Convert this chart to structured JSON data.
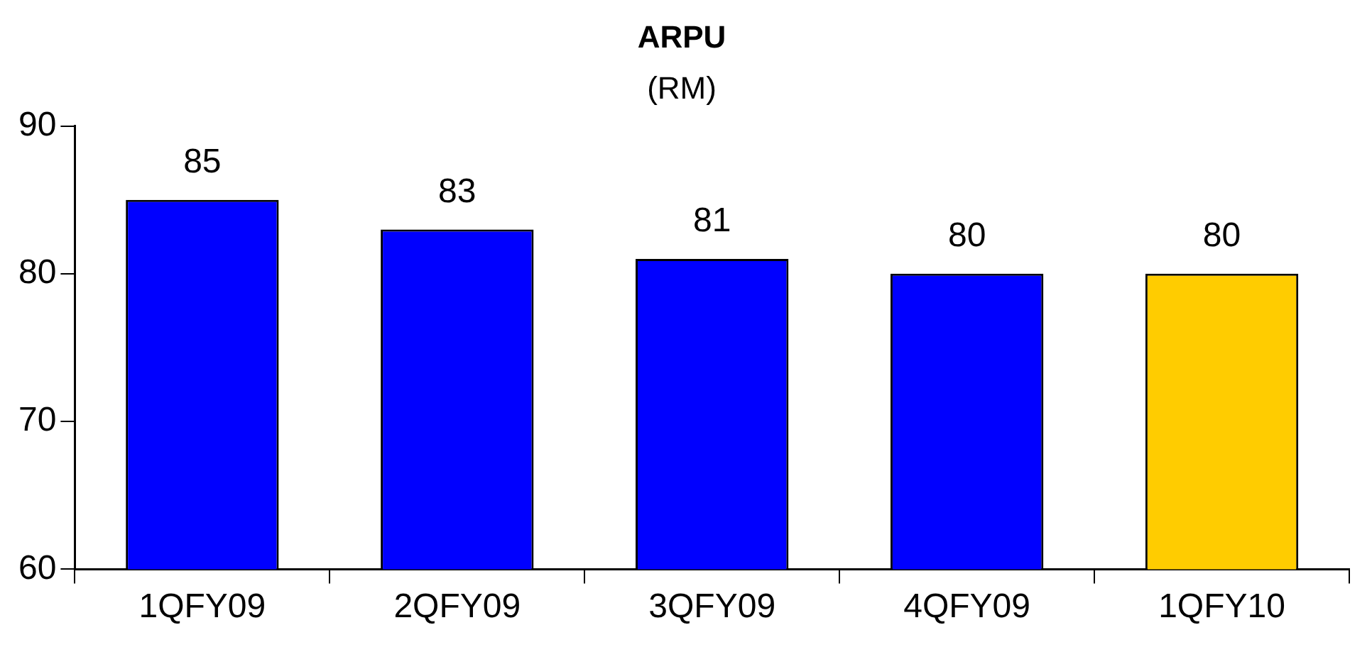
{
  "chart_data": {
    "type": "bar",
    "title": "ARPU",
    "subtitle": "(RM)",
    "categories": [
      "1QFY09",
      "2QFY09",
      "3QFY09",
      "4QFY09",
      "1QFY10"
    ],
    "values": [
      85,
      83,
      81,
      80,
      80
    ],
    "colors": [
      "#0000ff",
      "#0000ff",
      "#0000ff",
      "#0000ff",
      "#ffcc00"
    ],
    "ylim": [
      60,
      90
    ],
    "yticks": [
      60,
      70,
      80,
      90
    ],
    "grid": false,
    "legend": false,
    "data_labels": true
  }
}
